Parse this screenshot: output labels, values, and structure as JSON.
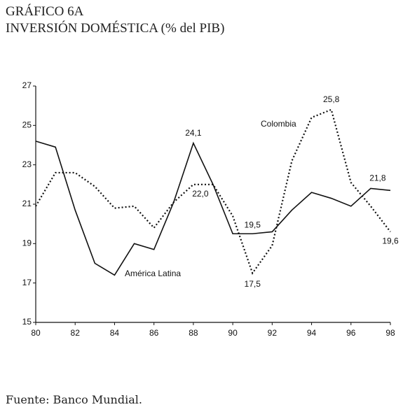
{
  "chart_data": {
    "type": "line",
    "title": "GRÁFICO 6A",
    "subtitle": "INVERSIÓN DOMÉSTICA (% del PIB)",
    "source": "Fuente: Banco Mundial.",
    "x": [
      80,
      81,
      82,
      83,
      84,
      85,
      86,
      87,
      88,
      89,
      90,
      91,
      92,
      93,
      94,
      95,
      96,
      97,
      98
    ],
    "series": [
      {
        "name": "América Latina",
        "color": "#111111",
        "style": "solid",
        "values": [
          24.2,
          23.9,
          20.7,
          18.0,
          17.4,
          19.0,
          18.7,
          21.1,
          24.1,
          22.0,
          19.5,
          19.5,
          19.6,
          20.7,
          21.6,
          21.3,
          20.9,
          21.8,
          21.7
        ],
        "value_labels": [
          null,
          null,
          null,
          null,
          null,
          null,
          null,
          null,
          "24,1",
          null,
          null,
          "19,5",
          null,
          null,
          null,
          null,
          null,
          "21,8",
          null
        ]
      },
      {
        "name": "Colombia",
        "color": "#111111",
        "style": "dotted",
        "values": [
          20.9,
          22.6,
          22.6,
          21.9,
          20.8,
          20.9,
          19.8,
          21.1,
          22.0,
          22.0,
          20.4,
          17.5,
          18.9,
          23.2,
          25.4,
          25.8,
          22.1,
          20.9,
          19.6
        ],
        "value_labels": [
          null,
          null,
          null,
          null,
          null,
          null,
          null,
          null,
          "22,0",
          null,
          null,
          "17,5",
          null,
          null,
          null,
          "25,8",
          null,
          null,
          "19,6"
        ]
      }
    ],
    "xlim": [
      80,
      98
    ],
    "xticks": [
      80,
      82,
      84,
      86,
      88,
      90,
      92,
      94,
      96,
      98
    ],
    "ylim": [
      15,
      27
    ],
    "yticks": [
      15,
      17,
      19,
      21,
      23,
      25,
      27
    ]
  }
}
